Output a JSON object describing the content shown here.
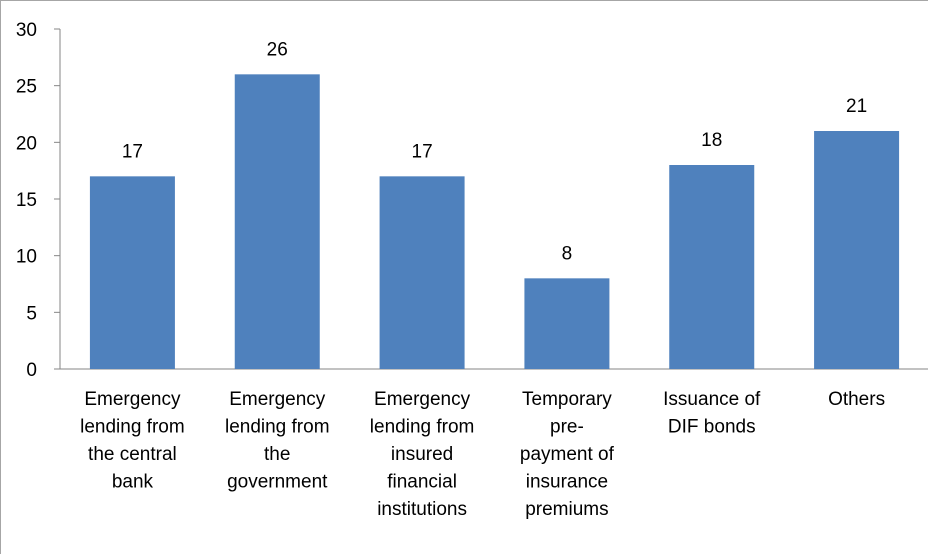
{
  "chart_data": {
    "type": "bar",
    "categories": [
      [
        "Emergency",
        "lending from",
        "the central",
        "bank"
      ],
      [
        "Emergency",
        "lending from",
        "the",
        "government"
      ],
      [
        "Emergency",
        "lending from",
        "insured",
        "financial",
        "institutions"
      ],
      [
        "Temporary",
        "pre-",
        "payment of",
        "insurance",
        "premiums"
      ],
      [
        "Issuance of",
        "DIF bonds"
      ],
      [
        "Others"
      ]
    ],
    "values": [
      17,
      26,
      17,
      8,
      18,
      21
    ],
    "yticks": [
      "0",
      "5",
      "10",
      "15",
      "20",
      "25",
      "30"
    ],
    "ylim": [
      0,
      30
    ],
    "data_labels": [
      "17",
      "26",
      "17",
      "8",
      "18",
      "21"
    ],
    "bar_color": "#4f81bd",
    "axis_color": "#868686",
    "grid": false,
    "legend": "none",
    "title": "",
    "xlabel": "",
    "ylabel": ""
  }
}
